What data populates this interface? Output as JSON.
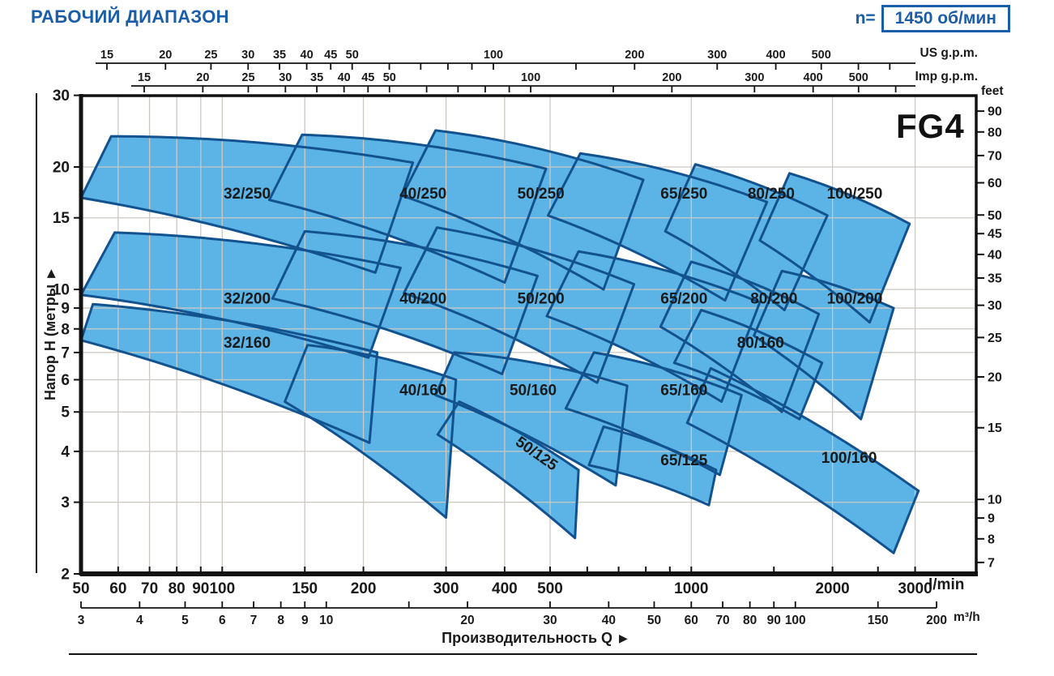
{
  "header": {
    "title": "РАБОЧИЙ ДИАПАЗОН",
    "speed_prefix": "n=",
    "speed_value": "1450 об/мин"
  },
  "colors": {
    "accent": "#1A5DA8",
    "region_fill": "#5BB4E5",
    "region_stroke": "#12528F",
    "grid": "#CCC8C2",
    "axis": "#111111",
    "text": "#1a1a1a"
  },
  "chart_data": {
    "type": "area",
    "model": "FG4",
    "speed_label": "n= 1450 об/мин",
    "scale": "log-log",
    "axes": {
      "y_left": {
        "title": "Напор H (метры",
        "arrow": "▶",
        "unit": "м",
        "ticks": [
          30,
          20,
          15,
          10,
          9,
          8,
          7,
          6,
          5,
          4,
          3,
          2
        ],
        "range": [
          2,
          30
        ]
      },
      "y_right": {
        "unit": "feet",
        "ticks": [
          90,
          80,
          70,
          60,
          50,
          45,
          40,
          35,
          30,
          25,
          20,
          15,
          10,
          9,
          8,
          7
        ],
        "feet_per_m": 3.2808
      },
      "x_bottom": {
        "title": "Производительность Q",
        "arrow": "▶",
        "unit": "l/min",
        "ticks": [
          50,
          60,
          70,
          80,
          90,
          100,
          150,
          200,
          300,
          400,
          500,
          1000,
          2000,
          3000
        ],
        "minor": [
          600,
          700,
          800,
          900,
          1500,
          2500
        ],
        "range": [
          50,
          3000
        ]
      },
      "x_bottom2": {
        "unit": "m³/h",
        "ticks": [
          3,
          4,
          5,
          6,
          7,
          8,
          9,
          10,
          20,
          30,
          40,
          50,
          60,
          70,
          80,
          90,
          100,
          150,
          200
        ],
        "minor": [
          15
        ],
        "lmin_per_unit": 16.667
      },
      "x_top_us": {
        "unit": "US g.p.m.",
        "ticks": [
          15,
          20,
          25,
          30,
          35,
          40,
          45,
          50,
          100,
          200,
          300,
          400,
          500
        ],
        "minor": [
          60,
          70,
          80,
          90,
          150,
          600,
          700
        ],
        "lmin_per_unit": 3.785
      },
      "x_top_imp": {
        "unit": "Imp g.p.m.",
        "ticks": [
          15,
          20,
          25,
          30,
          35,
          40,
          45,
          50,
          100,
          200,
          300,
          400,
          500
        ],
        "minor": [
          60,
          70,
          80,
          90,
          150,
          600
        ],
        "lmin_per_unit": 4.546
      }
    },
    "grid": {
      "h_lines_m": [
        3,
        4,
        5,
        6,
        7,
        8,
        9,
        10,
        15,
        20
      ],
      "v_lines_lmin": [
        60,
        70,
        80,
        90,
        100,
        150,
        200,
        300,
        400,
        500,
        1000,
        2000,
        3000
      ]
    },
    "regions": [
      {
        "label": "32/250",
        "tl": [
          58,
          23.8
        ],
        "tr": [
          255,
          20.5
        ],
        "br": [
          212,
          11.0
        ],
        "bl": [
          50,
          16.8
        ],
        "label_at": [
          113,
          17.2
        ],
        "rot": 0
      },
      {
        "label": "40/250",
        "tl": [
          148,
          24.0
        ],
        "tr": [
          490,
          19.8
        ],
        "br": [
          400,
          10.4
        ],
        "bl": [
          126,
          16.6
        ],
        "label_at": [
          268,
          17.2
        ],
        "rot": 0
      },
      {
        "label": "50/250",
        "tl": [
          285,
          24.6
        ],
        "tr": [
          790,
          18.6
        ],
        "br": [
          650,
          10.0
        ],
        "bl": [
          242,
          17.0
        ],
        "label_at": [
          478,
          17.2
        ],
        "rot": 0
      },
      {
        "label": "65/250",
        "tl": [
          580,
          21.6
        ],
        "tr": [
          1450,
          16.4
        ],
        "br": [
          1180,
          9.4
        ],
        "bl": [
          495,
          15.2
        ],
        "label_at": [
          965,
          17.2
        ],
        "rot": 0
      },
      {
        "label": "80/250",
        "tl": [
          1020,
          20.3
        ],
        "tr": [
          1950,
          15.2
        ],
        "br": [
          1580,
          8.9
        ],
        "bl": [
          880,
          13.9
        ],
        "label_at": [
          1480,
          17.2
        ],
        "rot": 0
      },
      {
        "label": "100/250",
        "tl": [
          1620,
          19.3
        ],
        "tr": [
          2920,
          14.5
        ],
        "br": [
          2400,
          8.3
        ],
        "bl": [
          1400,
          13.2
        ],
        "label_at": [
          2230,
          17.2
        ],
        "rot": 0
      },
      {
        "label": "32/200",
        "tl": [
          59,
          13.8
        ],
        "tr": [
          240,
          11.3
        ],
        "br": [
          205,
          6.8
        ],
        "bl": [
          50,
          9.7
        ],
        "label_at": [
          113,
          9.5
        ],
        "rot": 0
      },
      {
        "label": "40/200",
        "tl": [
          150,
          13.9
        ],
        "tr": [
          470,
          10.8
        ],
        "br": [
          395,
          6.2
        ],
        "bl": [
          128,
          9.5
        ],
        "label_at": [
          268,
          9.5
        ],
        "rot": 0
      },
      {
        "label": "50/200",
        "tl": [
          287,
          14.2
        ],
        "tr": [
          755,
          10.3
        ],
        "br": [
          630,
          5.9
        ],
        "bl": [
          244,
          9.8
        ],
        "label_at": [
          478,
          9.5
        ],
        "rot": 0
      },
      {
        "label": "65/200",
        "tl": [
          575,
          12.4
        ],
        "tr": [
          1400,
          9.3
        ],
        "br": [
          1160,
          5.3
        ],
        "bl": [
          492,
          8.6
        ],
        "label_at": [
          965,
          9.5
        ],
        "rot": 0
      },
      {
        "label": "80/200",
        "tl": [
          1000,
          11.7
        ],
        "tr": [
          1870,
          8.7
        ],
        "br": [
          1560,
          5.0
        ],
        "bl": [
          860,
          8.1
        ],
        "label_at": [
          1500,
          9.5
        ],
        "rot": 0
      },
      {
        "label": "100/200",
        "tl": [
          1560,
          11.1
        ],
        "tr": [
          2700,
          9.0
        ],
        "br": [
          2300,
          4.8
        ],
        "bl": [
          1360,
          7.7
        ],
        "label_at": [
          2230,
          9.5
        ],
        "rot": 0
      },
      {
        "label": "32/160",
        "tl": [
          53,
          9.2
        ],
        "tr": [
          214,
          7.0
        ],
        "br": [
          206,
          4.2
        ],
        "bl": [
          50,
          7.5
        ],
        "label_at": [
          113,
          7.4
        ],
        "rot": 0
      },
      {
        "label": "40/160",
        "tl": [
          152,
          7.3
        ],
        "tr": [
          315,
          6.0
        ],
        "br": [
          300,
          2.75
        ],
        "bl": [
          136,
          5.3
        ],
        "label_at": [
          268,
          5.65
        ],
        "rot": 0
      },
      {
        "label": "50/160",
        "tl": [
          312,
          7.0
        ],
        "tr": [
          730,
          5.8
        ],
        "br": [
          690,
          3.3
        ],
        "bl": [
          285,
          5.5
        ],
        "label_at": [
          460,
          5.65
        ],
        "rot": 0
      },
      {
        "label": "65/160",
        "tl": [
          620,
          7.0
        ],
        "tr": [
          1280,
          5.5
        ],
        "br": [
          1150,
          3.5
        ],
        "bl": [
          540,
          5.1
        ],
        "label_at": [
          965,
          5.65
        ],
        "rot": 0
      },
      {
        "label": "80/160",
        "tl": [
          1050,
          8.9
        ],
        "tr": [
          1900,
          6.6
        ],
        "br": [
          1700,
          4.8
        ],
        "bl": [
          920,
          6.6
        ],
        "label_at": [
          1405,
          7.4
        ],
        "rot": 0
      },
      {
        "label": "100/160",
        "tl": [
          1100,
          6.4
        ],
        "tr": [
          3050,
          3.2
        ],
        "br": [
          2700,
          2.25
        ],
        "bl": [
          980,
          4.7
        ],
        "label_at": [
          2170,
          3.85
        ],
        "rot": 0
      },
      {
        "label": "50/125",
        "tl": [
          320,
          5.3
        ],
        "tr": [
          575,
          3.6
        ],
        "br": [
          565,
          2.45
        ],
        "bl": [
          288,
          4.4
        ],
        "label_at": [
          468,
          3.95
        ],
        "rot": 35
      },
      {
        "label": "65/125",
        "tl": [
          650,
          4.6
        ],
        "tr": [
          1130,
          3.6
        ],
        "br": [
          1090,
          2.95
        ],
        "bl": [
          605,
          3.7
        ],
        "label_at": [
          965,
          3.8
        ],
        "rot": 0
      }
    ]
  }
}
